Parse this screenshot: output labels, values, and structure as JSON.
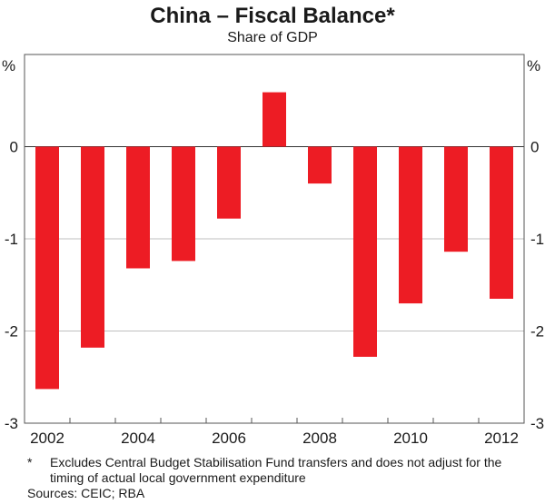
{
  "chart_data": {
    "type": "bar",
    "title": "China – Fiscal Balance*",
    "subtitle": "Share of GDP",
    "ylabel_left": "%",
    "ylabel_right": "%",
    "categories": [
      "2002",
      "2003",
      "2004",
      "2005",
      "2006",
      "2007",
      "2008",
      "2009",
      "2010",
      "2011",
      "2012"
    ],
    "x_tick_labels": [
      "2002",
      "2004",
      "2006",
      "2008",
      "2010",
      "2012"
    ],
    "values": [
      -2.63,
      -2.18,
      -1.32,
      -1.24,
      -0.78,
      0.59,
      -0.4,
      -2.28,
      -1.7,
      -1.14,
      -1.65
    ],
    "ylim": [
      -3,
      1
    ],
    "y_ticks": [
      0,
      -1,
      -2,
      -3
    ],
    "y_tick_labels": [
      "0",
      "-1",
      "-2",
      "-3"
    ],
    "grid": true,
    "bar_color": "#ed1c24"
  },
  "footnote": {
    "marker": "*",
    "text": "Excludes Central Budget Stabilisation Fund transfers and does not adjust for the timing of actual local government expenditure"
  },
  "source": "Sources: CEIC; RBA"
}
